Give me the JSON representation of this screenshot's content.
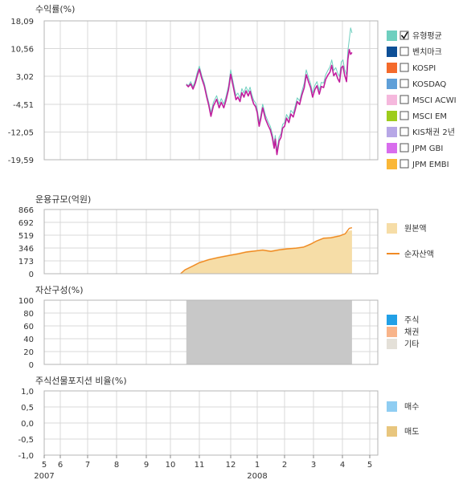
{
  "colors": {
    "return_fund": "#c21f9e",
    "return_avg": "#6ecfbf",
    "nav_fill": "#f6dda7",
    "net_line": "#f08a24",
    "asset_other": "#c8c8c8",
    "grid": "#d8d8d8",
    "frame": "#b5b5b5"
  },
  "x_axis": {
    "ticks": [
      "5",
      "6",
      "7",
      "8",
      "9",
      "10",
      "11",
      "12",
      "1",
      "2",
      "3",
      "4",
      "5"
    ],
    "year_labels": [
      {
        "text": "2007",
        "at": "5"
      },
      {
        "text": "2008",
        "at": "1"
      }
    ]
  },
  "chart_data": [
    {
      "type": "line",
      "title": "수익률(%)",
      "ylim": [
        -19.59,
        18.09
      ],
      "yticks": [
        "18,09",
        "10,56",
        "3,02",
        "-4,51",
        "-12,05",
        "-19,59"
      ],
      "legend_position": "right",
      "legend": [
        {
          "label": "유형평균",
          "color": "#6ecfbf",
          "checked": true
        },
        {
          "label": "벤치마크",
          "color": "#0d4f96",
          "checked": false
        },
        {
          "label": "KOSPI",
          "color": "#f46a2b",
          "checked": false
        },
        {
          "label": "KOSDAQ",
          "color": "#5f9fd8",
          "checked": false
        },
        {
          "label": "MSCI ACWI",
          "color": "#f5b8dd",
          "checked": false
        },
        {
          "label": "MSCI EM",
          "color": "#9dcc1c",
          "checked": false
        },
        {
          "label": "KIS채권 2년",
          "color": "#b7a7e6",
          "checked": false
        },
        {
          "label": "JPM GBI",
          "color": "#d86ded",
          "checked": false
        },
        {
          "label": "JPM EMBI",
          "color": "#fab737",
          "checked": false
        }
      ],
      "series": [
        {
          "key": "fund",
          "points": [
            [
              10.55,
              0.8
            ],
            [
              10.62,
              0.2
            ],
            [
              10.7,
              1.0
            ],
            [
              10.78,
              -0.4
            ],
            [
              10.86,
              1.2
            ],
            [
              10.93,
              3.3
            ],
            [
              11.0,
              5.0
            ],
            [
              11.08,
              2.4
            ],
            [
              11.16,
              0.4
            ],
            [
              11.24,
              -2.8
            ],
            [
              11.3,
              -4.8
            ],
            [
              11.37,
              -7.8
            ],
            [
              11.45,
              -5.0
            ],
            [
              11.55,
              -3.2
            ],
            [
              11.63,
              -5.5
            ],
            [
              11.7,
              -4.0
            ],
            [
              11.78,
              -5.5
            ],
            [
              11.85,
              -3.5
            ],
            [
              11.93,
              -0.5
            ],
            [
              12.0,
              3.6
            ],
            [
              12.07,
              1.2
            ],
            [
              12.14,
              -1.3
            ],
            [
              12.2,
              -3.3
            ],
            [
              12.27,
              -2.6
            ],
            [
              12.35,
              -3.8
            ],
            [
              12.42,
              -1.4
            ],
            [
              12.5,
              -2.6
            ],
            [
              12.58,
              -0.9
            ],
            [
              12.66,
              -2.3
            ],
            [
              12.73,
              -1.0
            ],
            [
              12.8,
              -3.0
            ],
            [
              12.87,
              -4.5
            ],
            [
              12.94,
              -5.2
            ],
            [
              13.0,
              -6.8
            ],
            [
              13.07,
              -10.5
            ],
            [
              13.13,
              -8.5
            ],
            [
              13.2,
              -5.5
            ],
            [
              13.3,
              -8.5
            ],
            [
              13.4,
              -10.3
            ],
            [
              13.48,
              -11.5
            ],
            [
              13.55,
              -13.5
            ],
            [
              13.62,
              -16.5
            ],
            [
              13.66,
              -14.0
            ],
            [
              13.72,
              -18.2
            ],
            [
              13.8,
              -14.5
            ],
            [
              13.87,
              -13.5
            ],
            [
              13.93,
              -11.0
            ],
            [
              14.0,
              -10.5
            ],
            [
              14.07,
              -8.3
            ],
            [
              14.15,
              -9.5
            ],
            [
              14.22,
              -7.2
            ],
            [
              14.3,
              -8.0
            ],
            [
              14.37,
              -6.0
            ],
            [
              14.44,
              -3.8
            ],
            [
              14.52,
              -4.6
            ],
            [
              14.6,
              -2.0
            ],
            [
              14.68,
              0.0
            ],
            [
              14.75,
              3.5
            ],
            [
              14.83,
              1.5
            ],
            [
              14.9,
              0.0
            ],
            [
              14.97,
              -2.6
            ],
            [
              15.05,
              -0.5
            ],
            [
              15.12,
              0.5
            ],
            [
              15.2,
              -1.8
            ],
            [
              15.27,
              0.3
            ],
            [
              15.35,
              0.0
            ],
            [
              15.42,
              2.2
            ],
            [
              15.5,
              3.4
            ],
            [
              15.57,
              4.2
            ],
            [
              15.63,
              6.0
            ],
            [
              15.7,
              3.2
            ],
            [
              15.77,
              4.0
            ],
            [
              15.84,
              2.4
            ],
            [
              15.9,
              1.5
            ],
            [
              15.96,
              5.4
            ],
            [
              16.02,
              5.8
            ],
            [
              16.08,
              3.4
            ],
            [
              16.15,
              1.6
            ],
            [
              16.2,
              7.7
            ],
            [
              16.25,
              10.3
            ],
            [
              16.3,
              9.0
            ],
            [
              16.35,
              9.5
            ]
          ]
        },
        {
          "key": "avg",
          "points": [
            [
              10.55,
              1.0
            ],
            [
              10.62,
              0.5
            ],
            [
              10.7,
              1.6
            ],
            [
              10.78,
              0.2
            ],
            [
              10.86,
              2.0
            ],
            [
              10.93,
              4.2
            ],
            [
              11.0,
              5.8
            ],
            [
              11.08,
              3.2
            ],
            [
              11.16,
              1.2
            ],
            [
              11.24,
              -2.0
            ],
            [
              11.3,
              -4.0
            ],
            [
              11.37,
              -6.8
            ],
            [
              11.45,
              -4.0
            ],
            [
              11.55,
              -2.2
            ],
            [
              11.63,
              -4.5
            ],
            [
              11.7,
              -3.0
            ],
            [
              11.78,
              -4.5
            ],
            [
              11.85,
              -2.5
            ],
            [
              11.93,
              0.5
            ],
            [
              12.0,
              4.8
            ],
            [
              12.07,
              2.3
            ],
            [
              12.14,
              -0.2
            ],
            [
              12.2,
              -2.2
            ],
            [
              12.27,
              -1.5
            ],
            [
              12.35,
              -2.8
            ],
            [
              12.42,
              -0.3
            ],
            [
              12.5,
              -1.5
            ],
            [
              12.58,
              0.2
            ],
            [
              12.66,
              -1.2
            ],
            [
              12.73,
              0.1
            ],
            [
              12.8,
              -2.0
            ],
            [
              12.87,
              -3.5
            ],
            [
              12.94,
              -4.2
            ],
            [
              13.0,
              -5.8
            ],
            [
              13.07,
              -9.5
            ],
            [
              13.13,
              -7.5
            ],
            [
              13.2,
              -4.5
            ],
            [
              13.3,
              -7.5
            ],
            [
              13.4,
              -9.3
            ],
            [
              13.48,
              -10.5
            ],
            [
              13.55,
              -12.5
            ],
            [
              13.62,
              -15.5
            ],
            [
              13.66,
              -13.0
            ],
            [
              13.72,
              -17.0
            ],
            [
              13.8,
              -13.5
            ],
            [
              13.87,
              -12.5
            ],
            [
              13.93,
              -10.0
            ],
            [
              14.0,
              -9.5
            ],
            [
              14.07,
              -7.3
            ],
            [
              14.15,
              -8.5
            ],
            [
              14.22,
              -6.2
            ],
            [
              14.3,
              -7.0
            ],
            [
              14.37,
              -5.0
            ],
            [
              14.44,
              -2.8
            ],
            [
              14.52,
              -3.6
            ],
            [
              14.6,
              -1.0
            ],
            [
              14.68,
              1.2
            ],
            [
              14.75,
              4.8
            ],
            [
              14.83,
              2.6
            ],
            [
              14.9,
              1.1
            ],
            [
              14.97,
              -1.5
            ],
            [
              15.05,
              0.6
            ],
            [
              15.12,
              1.6
            ],
            [
              15.2,
              -0.7
            ],
            [
              15.27,
              1.4
            ],
            [
              15.35,
              1.2
            ],
            [
              15.42,
              3.4
            ],
            [
              15.5,
              4.7
            ],
            [
              15.57,
              5.6
            ],
            [
              15.63,
              7.5
            ],
            [
              15.7,
              4.6
            ],
            [
              15.77,
              5.4
            ],
            [
              15.84,
              3.8
            ],
            [
              15.9,
              3.0
            ],
            [
              15.96,
              7.0
            ],
            [
              16.02,
              7.5
            ],
            [
              16.08,
              5.0
            ],
            [
              16.15,
              3.4
            ],
            [
              16.2,
              10.0
            ],
            [
              16.25,
              13.0
            ],
            [
              16.3,
              16.2
            ],
            [
              16.35,
              14.8
            ]
          ]
        }
      ]
    },
    {
      "type": "area",
      "title": "운용규모(억원)",
      "ylim": [
        0,
        866
      ],
      "yticks": [
        "866",
        "692",
        "519",
        "346",
        "173",
        "0"
      ],
      "legend_position": "right",
      "legend": [
        {
          "label": "원본액",
          "kind": "box",
          "color": "#f6dda7"
        },
        {
          "label": "순자산액",
          "kind": "line",
          "color": "#f08a24"
        }
      ],
      "series": [
        {
          "key": "principal",
          "points": [
            [
              10.35,
              0
            ],
            [
              10.5,
              60
            ],
            [
              10.8,
              120
            ],
            [
              11.0,
              160
            ],
            [
              11.3,
              200
            ],
            [
              11.6,
              230
            ],
            [
              12.0,
              262
            ],
            [
              12.3,
              282
            ],
            [
              12.6,
              305
            ],
            [
              12.9,
              318
            ],
            [
              13.2,
              330
            ],
            [
              13.5,
              318
            ],
            [
              13.8,
              334
            ],
            [
              14.1,
              348
            ],
            [
              14.4,
              356
            ],
            [
              14.65,
              368
            ],
            [
              14.9,
              410
            ],
            [
              15.1,
              450
            ],
            [
              15.35,
              490
            ],
            [
              15.6,
              498
            ],
            [
              15.9,
              520
            ],
            [
              16.1,
              545
            ],
            [
              16.25,
              580
            ],
            [
              16.35,
              585
            ]
          ]
        },
        {
          "key": "net",
          "points": [
            [
              10.35,
              0
            ],
            [
              10.5,
              52
            ],
            [
              10.8,
              108
            ],
            [
              11.0,
              148
            ],
            [
              11.3,
              188
            ],
            [
              11.6,
              218
            ],
            [
              12.0,
              250
            ],
            [
              12.3,
              268
            ],
            [
              12.6,
              292
            ],
            [
              12.9,
              305
            ],
            [
              13.2,
              318
            ],
            [
              13.5,
              300
            ],
            [
              13.8,
              322
            ],
            [
              14.1,
              336
            ],
            [
              14.4,
              344
            ],
            [
              14.65,
              357
            ],
            [
              14.9,
              398
            ],
            [
              15.1,
              440
            ],
            [
              15.35,
              478
            ],
            [
              15.6,
              484
            ],
            [
              15.9,
              510
            ],
            [
              16.1,
              538
            ],
            [
              16.25,
              612
            ],
            [
              16.35,
              620
            ]
          ]
        }
      ]
    },
    {
      "type": "area",
      "title": "자산구성(%)",
      "ylim": [
        0,
        100
      ],
      "yticks": [
        "100",
        "80",
        "60",
        "40",
        "20",
        "0"
      ],
      "legend_position": "right",
      "legend": [
        {
          "label": "주식",
          "color": "#22a0e6"
        },
        {
          "label": "채권",
          "color": "#f8b48a"
        },
        {
          "label": "기타",
          "color": "#e4e0d8"
        }
      ],
      "series": [
        {
          "key": "other",
          "start": 10.55,
          "end": 16.35,
          "value": 100
        }
      ]
    },
    {
      "type": "bar",
      "title": "주식선물포지션 비율(%)",
      "ylim": [
        -1.0,
        1.0
      ],
      "yticks": [
        "1,0",
        "0,5",
        "0,0",
        "-0,5",
        "-1,0"
      ],
      "legend_position": "right",
      "legend": [
        {
          "label": "매수",
          "color": "#8fcdf2"
        },
        {
          "label": "매도",
          "color": "#e8c67e"
        }
      ],
      "series": []
    }
  ]
}
